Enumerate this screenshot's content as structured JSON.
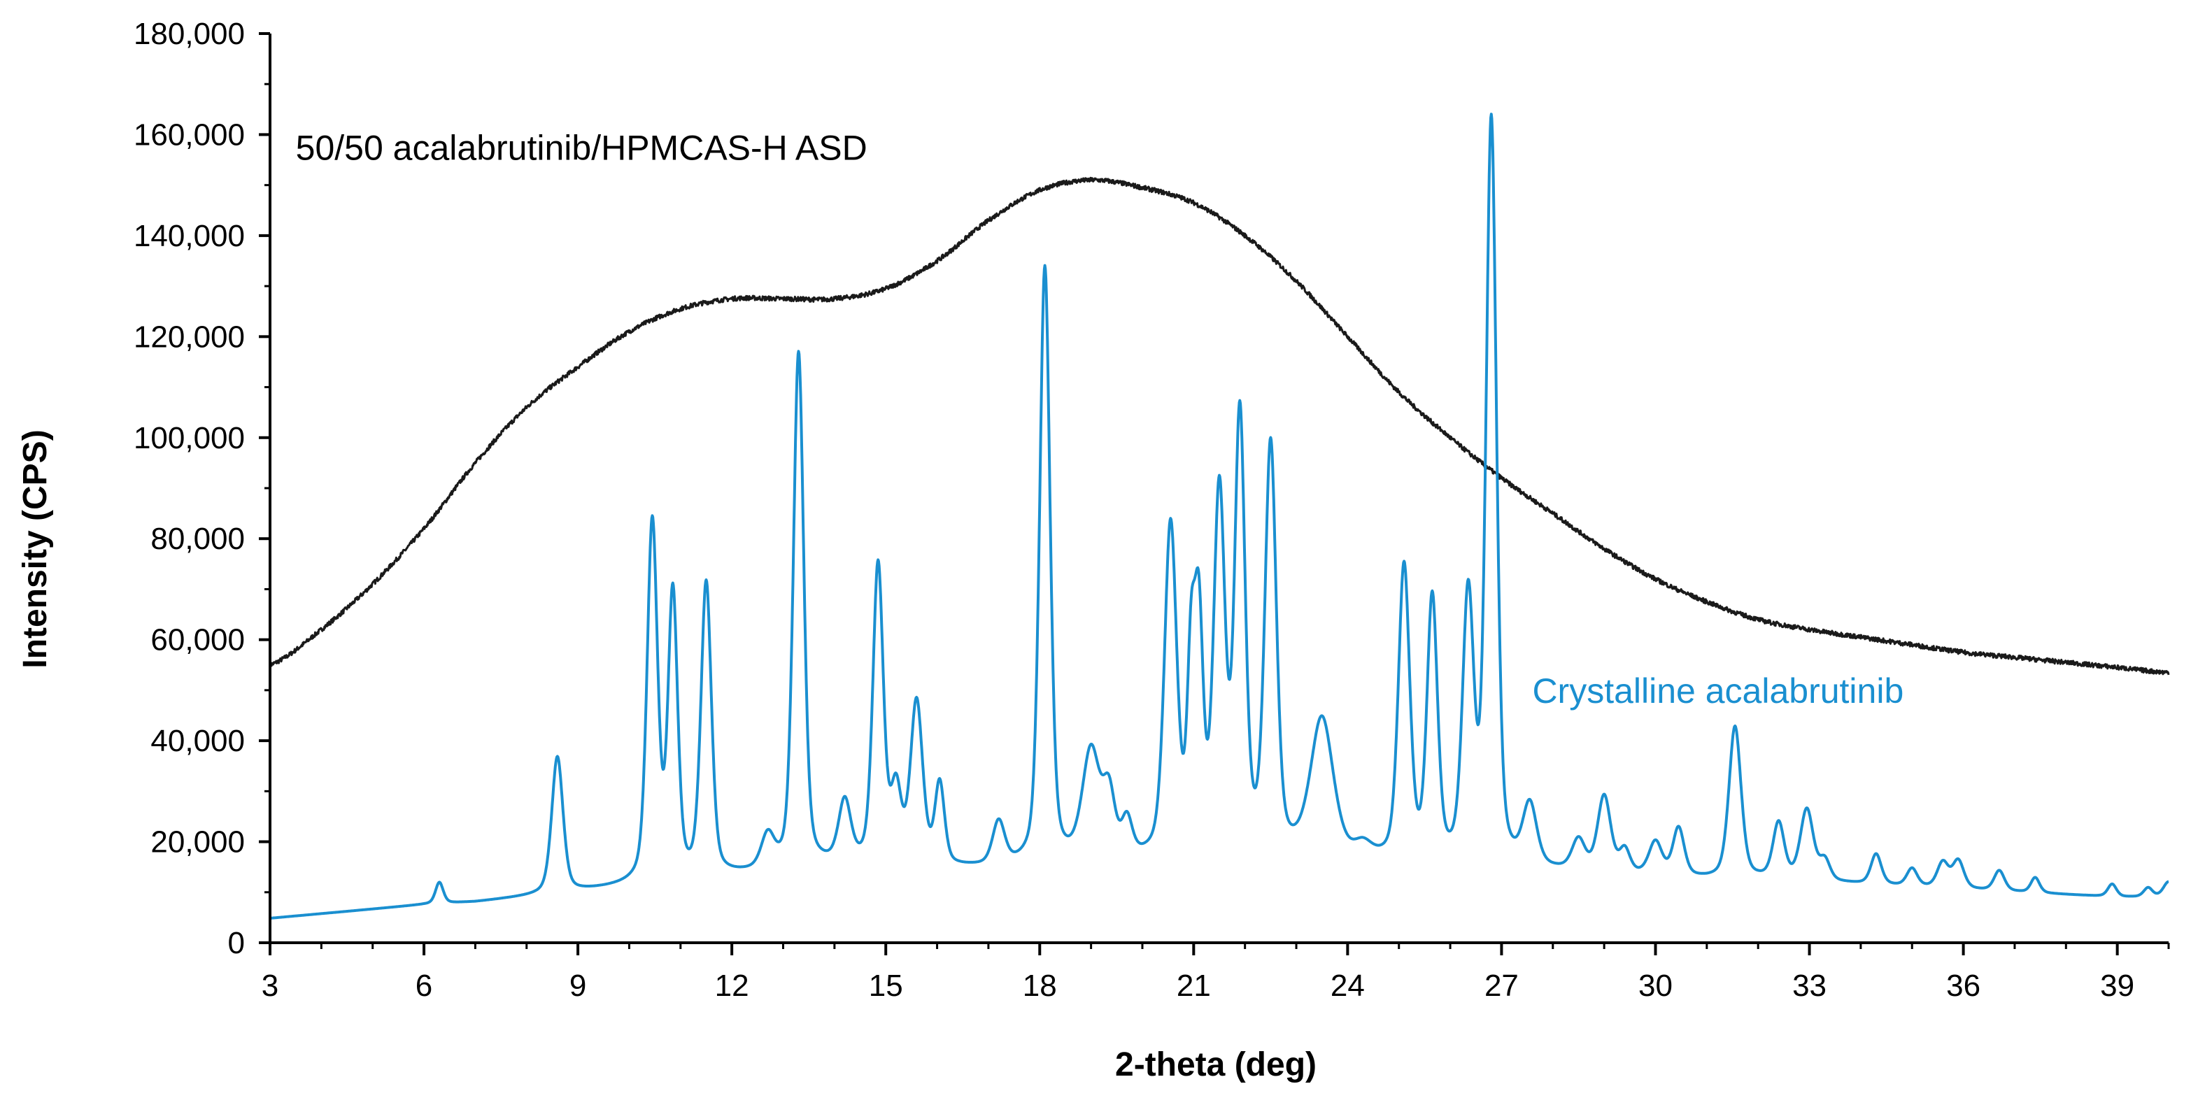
{
  "chart_data": {
    "type": "line",
    "title": "",
    "xlabel": "2-theta (deg)",
    "ylabel": "Intensity (CPS)",
    "xlim": [
      3,
      40
    ],
    "ylim": [
      0,
      180000
    ],
    "x_ticks": [
      3,
      6,
      9,
      12,
      15,
      18,
      21,
      24,
      27,
      30,
      33,
      36,
      39
    ],
    "x_tick_labels": [
      "3",
      "6",
      "9",
      "12",
      "15",
      "18",
      "21",
      "24",
      "27",
      "30",
      "33",
      "36",
      "39"
    ],
    "y_ticks": [
      0,
      20000,
      40000,
      60000,
      80000,
      100000,
      120000,
      140000,
      160000,
      180000
    ],
    "y_tick_labels": [
      "0",
      "20,000",
      "40,000",
      "60,000",
      "80,000",
      "100,000",
      "120,000",
      "140,000",
      "160,000",
      "180,000"
    ],
    "grid": false,
    "legend": "none",
    "series": [
      {
        "name": "50/50 acalabrutinib/HPMCAS-H ASD",
        "color": "#1a1a1a",
        "annotation": {
          "text": "50/50 acalabrutinib/HPMCAS-H ASD",
          "x": 3.5,
          "y": 155000
        },
        "points": [
          [
            3,
            55000
          ],
          [
            4,
            62000
          ],
          [
            5,
            71000
          ],
          [
            6,
            82000
          ],
          [
            7,
            95000
          ],
          [
            8,
            106000
          ],
          [
            9,
            114000
          ],
          [
            10,
            121000
          ],
          [
            11,
            125500
          ],
          [
            12,
            127500
          ],
          [
            13,
            127500
          ],
          [
            14,
            127500
          ],
          [
            15,
            129500
          ],
          [
            16,
            135000
          ],
          [
            17,
            143000
          ],
          [
            18,
            149000
          ],
          [
            19,
            151000
          ],
          [
            20,
            149500
          ],
          [
            21,
            146500
          ],
          [
            22,
            140000
          ],
          [
            23,
            131000
          ],
          [
            24,
            120000
          ],
          [
            25,
            109000
          ],
          [
            26,
            100000
          ],
          [
            27,
            92000
          ],
          [
            28,
            85000
          ],
          [
            29,
            78000
          ],
          [
            30,
            72000
          ],
          [
            31,
            67500
          ],
          [
            32,
            64000
          ],
          [
            33,
            62000
          ],
          [
            34,
            60500
          ],
          [
            35,
            59000
          ],
          [
            36,
            57500
          ],
          [
            37,
            56500
          ],
          [
            38,
            55500
          ],
          [
            39,
            54500
          ],
          [
            40,
            53500
          ]
        ]
      },
      {
        "name": "Crystalline acalabrutinib",
        "color": "#1a8fd0",
        "annotation": {
          "text": "Crystalline acalabrutinib",
          "x": 27.6,
          "y": 47500
        },
        "baseline": [
          [
            3,
            4800
          ],
          [
            6,
            7500
          ],
          [
            7,
            8000
          ],
          [
            8,
            9000
          ],
          [
            9,
            10000
          ],
          [
            10,
            11000
          ],
          [
            11,
            12000
          ],
          [
            12,
            13000
          ],
          [
            13,
            14000
          ],
          [
            14,
            15000
          ],
          [
            15,
            15000
          ],
          [
            16,
            14500
          ],
          [
            17,
            14500
          ],
          [
            18,
            15000
          ],
          [
            19,
            16000
          ],
          [
            20,
            16000
          ],
          [
            21,
            16500
          ],
          [
            22,
            17000
          ],
          [
            23,
            17000
          ],
          [
            24,
            16000
          ],
          [
            25,
            15500
          ],
          [
            26,
            15000
          ],
          [
            27,
            14500
          ],
          [
            28,
            14000
          ],
          [
            29,
            13500
          ],
          [
            30,
            13000
          ],
          [
            31,
            12500
          ],
          [
            32,
            12500
          ],
          [
            33,
            12000
          ],
          [
            34,
            11500
          ],
          [
            35,
            11000
          ],
          [
            36,
            10500
          ],
          [
            37,
            10000
          ],
          [
            38,
            9500
          ],
          [
            39,
            9000
          ],
          [
            40,
            9000
          ]
        ],
        "peaks": [
          [
            6.3,
            4200,
            0.09
          ],
          [
            8.6,
            27000,
            0.13
          ],
          [
            10.45,
            71000,
            0.12
          ],
          [
            10.85,
            56000,
            0.11
          ],
          [
            11.5,
            58000,
            0.12
          ],
          [
            12.7,
            6500,
            0.15
          ],
          [
            13.3,
            102000,
            0.12
          ],
          [
            14.2,
            12000,
            0.14
          ],
          [
            14.85,
            59000,
            0.12
          ],
          [
            15.2,
            14000,
            0.12
          ],
          [
            15.6,
            32000,
            0.14
          ],
          [
            16.05,
            16000,
            0.11
          ],
          [
            17.2,
            8500,
            0.14
          ],
          [
            18.1,
            118000,
            0.12
          ],
          [
            19.0,
            21000,
            0.2
          ],
          [
            19.35,
            12000,
            0.14
          ],
          [
            19.7,
            7000,
            0.12
          ],
          [
            20.55,
            65000,
            0.14
          ],
          [
            20.95,
            35000,
            0.09
          ],
          [
            21.1,
            44000,
            0.1
          ],
          [
            21.5,
            70000,
            0.13
          ],
          [
            21.9,
            85000,
            0.12
          ],
          [
            22.5,
            80000,
            0.13
          ],
          [
            23.5,
            27000,
            0.26
          ],
          [
            24.3,
            2500,
            0.2
          ],
          [
            25.1,
            58000,
            0.13
          ],
          [
            25.65,
            51500,
            0.12
          ],
          [
            26.35,
            52000,
            0.13
          ],
          [
            26.8,
            147000,
            0.12
          ],
          [
            27.55,
            12000,
            0.16
          ],
          [
            28.5,
            6000,
            0.15
          ],
          [
            29.0,
            15000,
            0.15
          ],
          [
            29.4,
            4500,
            0.12
          ],
          [
            30.0,
            6500,
            0.15
          ],
          [
            30.45,
            9500,
            0.13
          ],
          [
            31.55,
            30000,
            0.14
          ],
          [
            32.4,
            11000,
            0.13
          ],
          [
            32.95,
            14000,
            0.15
          ],
          [
            33.3,
            4000,
            0.12
          ],
          [
            34.3,
            6000,
            0.12
          ],
          [
            35.0,
            3500,
            0.12
          ],
          [
            35.6,
            5000,
            0.13
          ],
          [
            35.9,
            5500,
            0.13
          ],
          [
            36.7,
            4000,
            0.12
          ],
          [
            37.4,
            3000,
            0.1
          ],
          [
            38.9,
            2500,
            0.1
          ],
          [
            39.6,
            1800,
            0.1
          ],
          [
            40.0,
            3000,
            0.12
          ]
        ]
      }
    ]
  }
}
